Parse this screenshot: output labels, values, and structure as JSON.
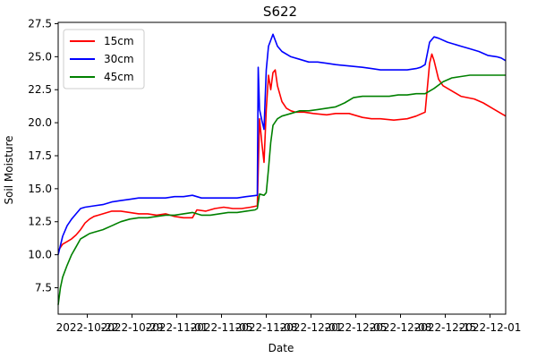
{
  "chart_data": {
    "type": "line",
    "title": "S622",
    "xlabel": "Date",
    "ylabel": "Soil Moisture",
    "ylim": [
      5.5,
      27.6
    ],
    "xlim": [
      0,
      100
    ],
    "grid": false,
    "legend_position": "upper-left",
    "yticks": [
      7.5,
      10.0,
      12.5,
      15.0,
      17.5,
      20.0,
      22.5,
      25.0,
      27.5
    ],
    "xticks": [
      {
        "x": 6.5,
        "label": "2022-10-22"
      },
      {
        "x": 16.5,
        "label": "2022-10-29"
      },
      {
        "x": 26.5,
        "label": "2022-11-01"
      },
      {
        "x": 36.5,
        "label": "2022-11-05"
      },
      {
        "x": 46.5,
        "label": "2022-11-08"
      },
      {
        "x": 56.5,
        "label": "2022-12-01"
      },
      {
        "x": 66.5,
        "label": "2022-12-05"
      },
      {
        "x": 76.5,
        "label": "2022-12-08"
      },
      {
        "x": 86.5,
        "label": "2022-12-15"
      },
      {
        "x": 96.5,
        "label": "2022-12-01"
      }
    ],
    "series": [
      {
        "name": "15cm",
        "color": "#ff0000",
        "points": [
          [
            0,
            10.3
          ],
          [
            1,
            10.8
          ],
          [
            2,
            11.0
          ],
          [
            3,
            11.2
          ],
          [
            4,
            11.5
          ],
          [
            5,
            11.9
          ],
          [
            6,
            12.4
          ],
          [
            7,
            12.7
          ],
          [
            8,
            12.9
          ],
          [
            9,
            13.0
          ],
          [
            10,
            13.1
          ],
          [
            12,
            13.3
          ],
          [
            14,
            13.3
          ],
          [
            16,
            13.2
          ],
          [
            18,
            13.1
          ],
          [
            20,
            13.1
          ],
          [
            22,
            13.0
          ],
          [
            24,
            13.1
          ],
          [
            26,
            12.9
          ],
          [
            28,
            12.8
          ],
          [
            30,
            12.8
          ],
          [
            31,
            13.4
          ],
          [
            33,
            13.3
          ],
          [
            35,
            13.5
          ],
          [
            37,
            13.6
          ],
          [
            39,
            13.5
          ],
          [
            41,
            13.5
          ],
          [
            43,
            13.6
          ],
          [
            44.5,
            13.7
          ],
          [
            45,
            20.3
          ],
          [
            45.5,
            18.5
          ],
          [
            46,
            17.0
          ],
          [
            46.5,
            21.0
          ],
          [
            47,
            23.6
          ],
          [
            47.5,
            22.5
          ],
          [
            48,
            23.8
          ],
          [
            48.5,
            24.0
          ],
          [
            49,
            22.8
          ],
          [
            50,
            21.6
          ],
          [
            51,
            21.1
          ],
          [
            52,
            20.9
          ],
          [
            53,
            20.8
          ],
          [
            55,
            20.8
          ],
          [
            57,
            20.7
          ],
          [
            60,
            20.6
          ],
          [
            62,
            20.7
          ],
          [
            65,
            20.7
          ],
          [
            68,
            20.4
          ],
          [
            70,
            20.3
          ],
          [
            72,
            20.3
          ],
          [
            75,
            20.2
          ],
          [
            78,
            20.3
          ],
          [
            80,
            20.5
          ],
          [
            82,
            20.8
          ],
          [
            83,
            24.5
          ],
          [
            83.5,
            25.2
          ],
          [
            84,
            24.7
          ],
          [
            85,
            23.3
          ],
          [
            86,
            22.8
          ],
          [
            88,
            22.4
          ],
          [
            90,
            22.0
          ],
          [
            93,
            21.8
          ],
          [
            95,
            21.5
          ],
          [
            97,
            21.1
          ],
          [
            99,
            20.7
          ],
          [
            100,
            20.5
          ]
        ]
      },
      {
        "name": "30cm",
        "color": "#0000ff",
        "points": [
          [
            0,
            10.0
          ],
          [
            1,
            11.4
          ],
          [
            2,
            12.2
          ],
          [
            3,
            12.7
          ],
          [
            4,
            13.1
          ],
          [
            5,
            13.5
          ],
          [
            6,
            13.6
          ],
          [
            8,
            13.7
          ],
          [
            10,
            13.8
          ],
          [
            12,
            14.0
          ],
          [
            14,
            14.1
          ],
          [
            16,
            14.2
          ],
          [
            18,
            14.3
          ],
          [
            20,
            14.3
          ],
          [
            22,
            14.3
          ],
          [
            24,
            14.3
          ],
          [
            26,
            14.4
          ],
          [
            28,
            14.4
          ],
          [
            30,
            14.5
          ],
          [
            32,
            14.3
          ],
          [
            34,
            14.3
          ],
          [
            36,
            14.3
          ],
          [
            38,
            14.3
          ],
          [
            40,
            14.3
          ],
          [
            42,
            14.4
          ],
          [
            44.5,
            14.5
          ],
          [
            44.7,
            24.2
          ],
          [
            45,
            21.0
          ],
          [
            45.5,
            20.2
          ],
          [
            46,
            19.5
          ],
          [
            46.5,
            24.0
          ],
          [
            47,
            25.8
          ],
          [
            48,
            26.7
          ],
          [
            49,
            25.8
          ],
          [
            50,
            25.4
          ],
          [
            52,
            25.0
          ],
          [
            54,
            24.8
          ],
          [
            56,
            24.6
          ],
          [
            58,
            24.6
          ],
          [
            60,
            24.5
          ],
          [
            62,
            24.4
          ],
          [
            65,
            24.3
          ],
          [
            68,
            24.2
          ],
          [
            70,
            24.1
          ],
          [
            72,
            24.0
          ],
          [
            75,
            24.0
          ],
          [
            78,
            24.0
          ],
          [
            80,
            24.1
          ],
          [
            81,
            24.2
          ],
          [
            82,
            24.4
          ],
          [
            83,
            26.1
          ],
          [
            84,
            26.5
          ],
          [
            85,
            26.4
          ],
          [
            87,
            26.1
          ],
          [
            90,
            25.8
          ],
          [
            92,
            25.6
          ],
          [
            94,
            25.4
          ],
          [
            96,
            25.1
          ],
          [
            98,
            25.0
          ],
          [
            99,
            24.9
          ],
          [
            100,
            24.7
          ]
        ]
      },
      {
        "name": "45cm",
        "color": "#008000",
        "points": [
          [
            0,
            6.2
          ],
          [
            0.5,
            7.5
          ],
          [
            1,
            8.3
          ],
          [
            2,
            9.2
          ],
          [
            3,
            10.0
          ],
          [
            4,
            10.6
          ],
          [
            5,
            11.2
          ],
          [
            6,
            11.4
          ],
          [
            7,
            11.6
          ],
          [
            8,
            11.7
          ],
          [
            10,
            11.9
          ],
          [
            12,
            12.2
          ],
          [
            14,
            12.5
          ],
          [
            16,
            12.7
          ],
          [
            18,
            12.8
          ],
          [
            20,
            12.8
          ],
          [
            22,
            12.9
          ],
          [
            24,
            13.0
          ],
          [
            26,
            13.0
          ],
          [
            28,
            13.1
          ],
          [
            30,
            13.2
          ],
          [
            32,
            13.0
          ],
          [
            34,
            13.0
          ],
          [
            36,
            13.1
          ],
          [
            38,
            13.2
          ],
          [
            40,
            13.2
          ],
          [
            42,
            13.3
          ],
          [
            44,
            13.4
          ],
          [
            44.5,
            13.5
          ],
          [
            45,
            14.6
          ],
          [
            46,
            14.5
          ],
          [
            46.5,
            14.7
          ],
          [
            47,
            16.5
          ],
          [
            47.5,
            18.5
          ],
          [
            48,
            19.8
          ],
          [
            49,
            20.3
          ],
          [
            50,
            20.5
          ],
          [
            52,
            20.7
          ],
          [
            54,
            20.9
          ],
          [
            56,
            20.9
          ],
          [
            58,
            21.0
          ],
          [
            60,
            21.1
          ],
          [
            62,
            21.2
          ],
          [
            64,
            21.5
          ],
          [
            66,
            21.9
          ],
          [
            68,
            22.0
          ],
          [
            70,
            22.0
          ],
          [
            72,
            22.0
          ],
          [
            74,
            22.0
          ],
          [
            76,
            22.1
          ],
          [
            78,
            22.1
          ],
          [
            80,
            22.2
          ],
          [
            82,
            22.2
          ],
          [
            84,
            22.6
          ],
          [
            86,
            23.1
          ],
          [
            88,
            23.4
          ],
          [
            90,
            23.5
          ],
          [
            92,
            23.6
          ],
          [
            95,
            23.6
          ],
          [
            98,
            23.6
          ],
          [
            100,
            23.6
          ]
        ]
      }
    ]
  }
}
